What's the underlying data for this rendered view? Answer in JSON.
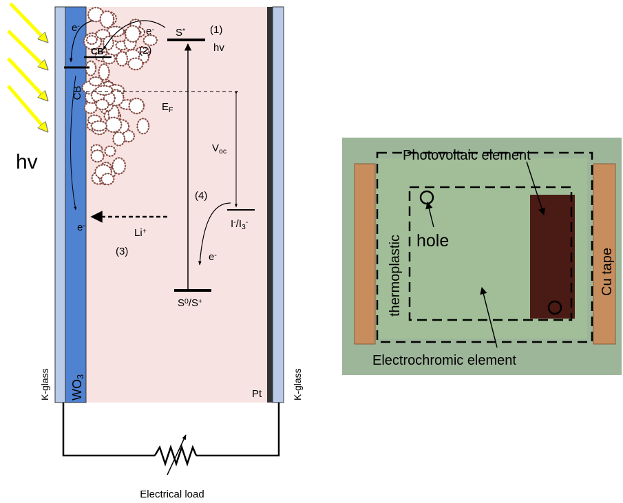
{
  "left_diagram": {
    "incident_light": "hv",
    "layers": {
      "k_glass_left": "K-glass",
      "wo3": [
        {
          "text": "WO"
        },
        {
          "sub": "3"
        }
      ],
      "pt": "Pt",
      "k_glass_right": "K-glass"
    },
    "labels": {
      "cb_wo3": "CB",
      "cb_tio2": "CB",
      "e_inject_left": [
        {
          "text": "e"
        },
        {
          "sup": "-"
        }
      ],
      "e_inject_right": [
        {
          "text": "e"
        },
        {
          "sup": "-"
        }
      ],
      "excited_state": [
        {
          "text": "S"
        },
        {
          "sup": "*"
        }
      ],
      "step_1": "(1)",
      "excitation": "hv",
      "step_2": "(2)",
      "fermi_level": [
        {
          "text": "E"
        },
        {
          "sub": "F"
        }
      ],
      "open_circuit_voltage": [
        {
          "text": "V"
        },
        {
          "sub": "oc"
        }
      ],
      "step_4": "(4)",
      "redox_couple": [
        {
          "text": "I"
        },
        {
          "sup": "-"
        },
        {
          "text": "/I"
        },
        {
          "sub": "3"
        },
        {
          "sup": "-"
        }
      ],
      "e_wo3": [
        {
          "text": "e"
        },
        {
          "sup": "-"
        }
      ],
      "lithium_ion": [
        {
          "text": "Li"
        },
        {
          "sup": "+"
        }
      ],
      "step_3": "(3)",
      "e_regeneration": [
        {
          "text": "e"
        },
        {
          "sup": "-"
        }
      ],
      "ground_state": [
        {
          "text": "S"
        },
        {
          "sup": "0"
        },
        {
          "text": "/S"
        },
        {
          "sup": "+"
        }
      ]
    },
    "load": "Electrical load"
  },
  "photo": {
    "labels": {
      "photovoltaic": "Photovoltaic element",
      "hole": "hole",
      "thermoplastic": "thermoplastic",
      "cu_tape": "Cu tape",
      "electrochromic": "Electrochromic element"
    }
  }
}
